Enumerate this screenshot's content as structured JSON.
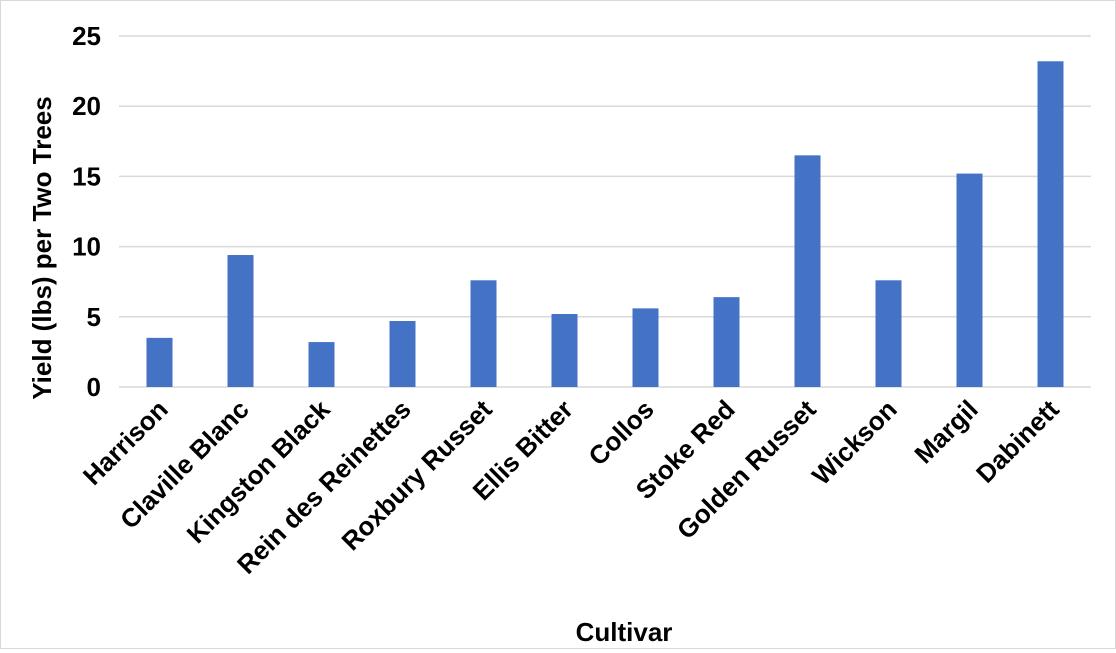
{
  "chart_data": {
    "type": "bar",
    "title": "",
    "xlabel": "Cultivar",
    "ylabel": "Yield (lbs) per Two Trees",
    "categories": [
      "Harrison",
      "Claville Blanc",
      "Kingston Black",
      "Rein des Reinettes",
      "Roxbury Russet",
      "Ellis Bitter",
      "Collos",
      "Stoke Red",
      "Golden Russet",
      "Wickson",
      "Margil",
      "Dabinett"
    ],
    "values": [
      3.5,
      9.4,
      3.2,
      4.7,
      7.6,
      5.2,
      5.6,
      6.4,
      16.5,
      7.6,
      15.2,
      23.2
    ],
    "ylim": [
      0,
      25
    ],
    "yticks": [
      "0",
      "5",
      "10",
      "15",
      "20",
      "25"
    ],
    "grid": true,
    "bar_color": "#4472c4",
    "grid_color": "#d9d9d9"
  }
}
